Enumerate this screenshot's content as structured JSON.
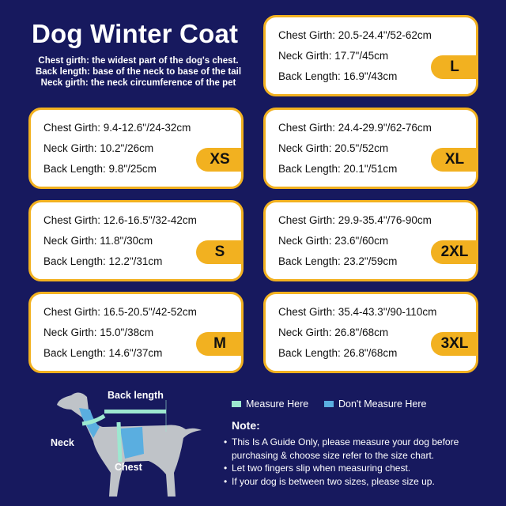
{
  "title": "Dog Winter Coat",
  "definitions": [
    "Chest girth: the widest part of the dog's chest.",
    "Back length: base of the neck to base of the tail",
    "Neck girth: the neck circumference of the pet"
  ],
  "sizes": [
    {
      "size": "L",
      "chest": "Chest Girth: 20.5-24.4\"/52-62cm",
      "neck": "Neck Girth: 17.7\"/45cm",
      "back": "Back Length: 16.9\"/43cm"
    },
    {
      "size": "XS",
      "chest": "Chest Girth: 9.4-12.6\"/24-32cm",
      "neck": "Neck Girth: 10.2\"/26cm",
      "back": "Back Length: 9.8\"/25cm"
    },
    {
      "size": "XL",
      "chest": "Chest Girth: 24.4-29.9\"/62-76cm",
      "neck": "Neck Girth: 20.5\"/52cm",
      "back": "Back Length: 20.1\"/51cm"
    },
    {
      "size": "S",
      "chest": "Chest Girth: 12.6-16.5\"/32-42cm",
      "neck": "Neck Girth: 11.8\"/30cm",
      "back": "Back Length: 12.2\"/31cm"
    },
    {
      "size": "2XL",
      "chest": "Chest Girth: 29.9-35.4\"/76-90cm",
      "neck": "Neck Girth: 23.6\"/60cm",
      "back": "Back Length: 23.2\"/59cm"
    },
    {
      "size": "M",
      "chest": "Chest Girth: 16.5-20.5\"/42-52cm",
      "neck": "Neck Girth: 15.0\"/38cm",
      "back": "Back Length: 14.6\"/37cm"
    },
    {
      "size": "3XL",
      "chest": "Chest Girth: 35.4-43.3\"/90-110cm",
      "neck": "Neck Girth: 26.8\"/68cm",
      "back": "Back Length: 26.8\"/68cm"
    }
  ],
  "diagram": {
    "back_length": "Back length",
    "neck": "Neck",
    "chest": "Chest"
  },
  "legend": {
    "measure": "Measure Here",
    "dont_measure": "Don't Measure Here"
  },
  "note": {
    "heading": "Note:",
    "items": [
      "This Is A Guide Only, please measure your dog before purchasing & choose size refer to the size chart.",
      "Let two fingers slip when measuring chest.",
      "If your dog is between two sizes, please size up."
    ]
  },
  "colors": {
    "background": "#17195e",
    "accent": "#f2b120",
    "measure": "#9de8d0",
    "dont_measure": "#5aaee0",
    "dog": "#bfc3c8"
  }
}
